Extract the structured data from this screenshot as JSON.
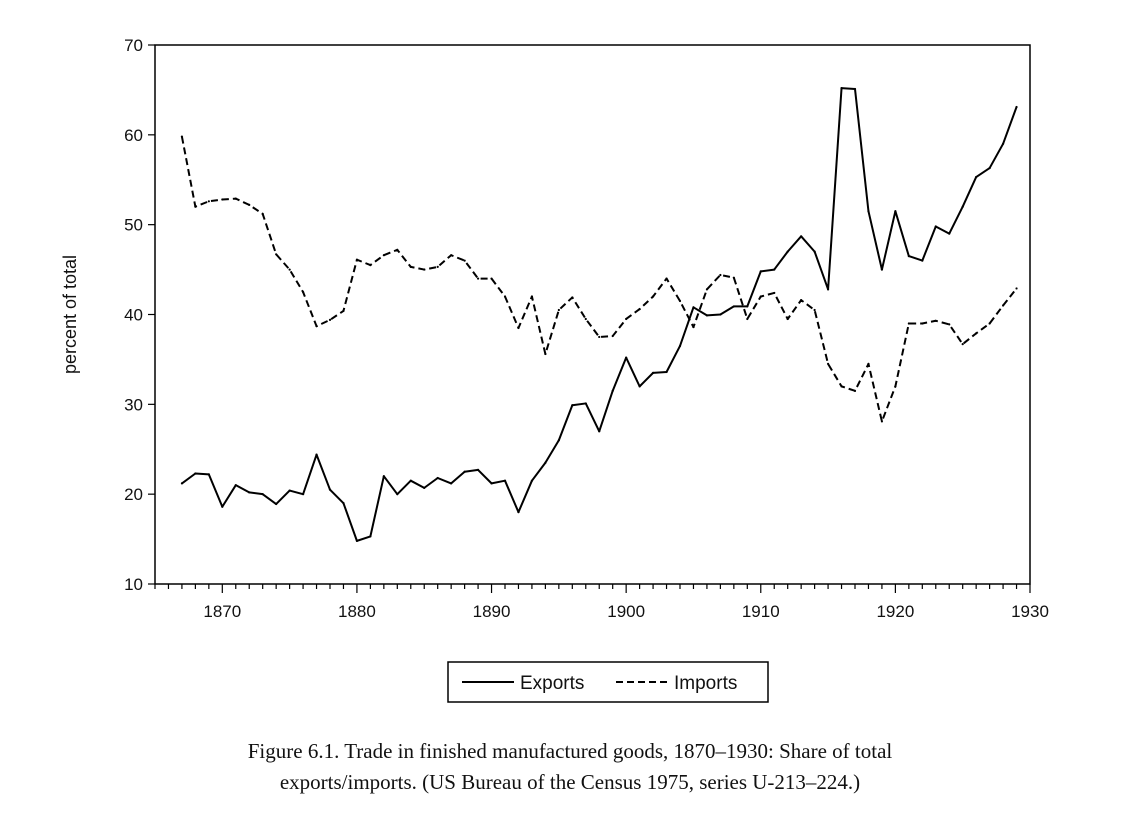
{
  "chart_data": {
    "type": "line",
    "ylabel": "percent of total",
    "xlim": [
      1865,
      1930
    ],
    "ylim": [
      10,
      70
    ],
    "x_ticks": [
      1870,
      1880,
      1890,
      1900,
      1910,
      1920,
      1930
    ],
    "y_ticks": [
      10,
      20,
      30,
      40,
      50,
      60,
      70
    ],
    "legend_position": "bottom-center",
    "grid": false,
    "x": [
      1867,
      1868,
      1869,
      1870,
      1871,
      1872,
      1873,
      1874,
      1875,
      1876,
      1877,
      1878,
      1879,
      1880,
      1881,
      1882,
      1883,
      1884,
      1885,
      1886,
      1887,
      1888,
      1889,
      1890,
      1891,
      1892,
      1893,
      1894,
      1895,
      1896,
      1897,
      1898,
      1899,
      1900,
      1901,
      1902,
      1903,
      1904,
      1905,
      1906,
      1907,
      1908,
      1909,
      1910,
      1911,
      1912,
      1913,
      1914,
      1915,
      1916,
      1917,
      1918,
      1919,
      1920,
      1921,
      1922,
      1923,
      1924,
      1925,
      1926,
      1927,
      1928,
      1929
    ],
    "series": [
      {
        "name": "Exports",
        "style": "solid",
        "color": "#000000",
        "values": [
          21.2,
          22.3,
          22.2,
          18.6,
          21.0,
          20.2,
          20.0,
          18.9,
          20.4,
          20.0,
          24.4,
          20.5,
          19.0,
          14.8,
          15.3,
          22.0,
          20.0,
          21.5,
          20.7,
          21.8,
          21.2,
          22.5,
          22.7,
          21.2,
          21.5,
          18.0,
          21.5,
          23.5,
          26.0,
          29.9,
          30.1,
          27.0,
          31.5,
          35.2,
          32.0,
          33.5,
          33.6,
          36.5,
          40.8,
          39.9,
          40.0,
          40.9,
          40.9,
          44.8,
          45.0,
          47.0,
          48.7,
          47.0,
          42.8,
          65.2,
          65.1,
          51.5,
          45.0,
          51.5,
          46.5,
          46.0,
          49.8,
          49.0,
          52.0,
          55.3,
          56.3,
          59.0,
          63.1
        ]
      },
      {
        "name": "Imports",
        "style": "dashed",
        "color": "#000000",
        "values": [
          59.8,
          52.0,
          52.6,
          52.8,
          52.9,
          52.2,
          51.2,
          46.7,
          45.0,
          42.5,
          38.7,
          39.4,
          40.4,
          46.1,
          45.5,
          46.6,
          47.2,
          45.3,
          45.0,
          45.3,
          46.6,
          46.0,
          44.0,
          44.0,
          42.0,
          38.5,
          42.0,
          35.6,
          40.5,
          41.9,
          39.5,
          37.5,
          37.6,
          39.5,
          40.6,
          42.0,
          44.0,
          41.5,
          38.6,
          42.8,
          44.4,
          44.1,
          39.5,
          42.0,
          42.4,
          39.5,
          41.6,
          40.5,
          34.5,
          32.0,
          31.5,
          34.5,
          28.1,
          32.0,
          39.0,
          39.0,
          39.3,
          38.9,
          36.7,
          37.9,
          39.0,
          41.0,
          42.9
        ]
      }
    ]
  },
  "caption": {
    "line1": "Figure 6.1. Trade in finished manufactured goods, 1870–1930: Share of total",
    "line2": "exports/imports. (US Bureau of the Census 1975, series U-213–224.)"
  }
}
